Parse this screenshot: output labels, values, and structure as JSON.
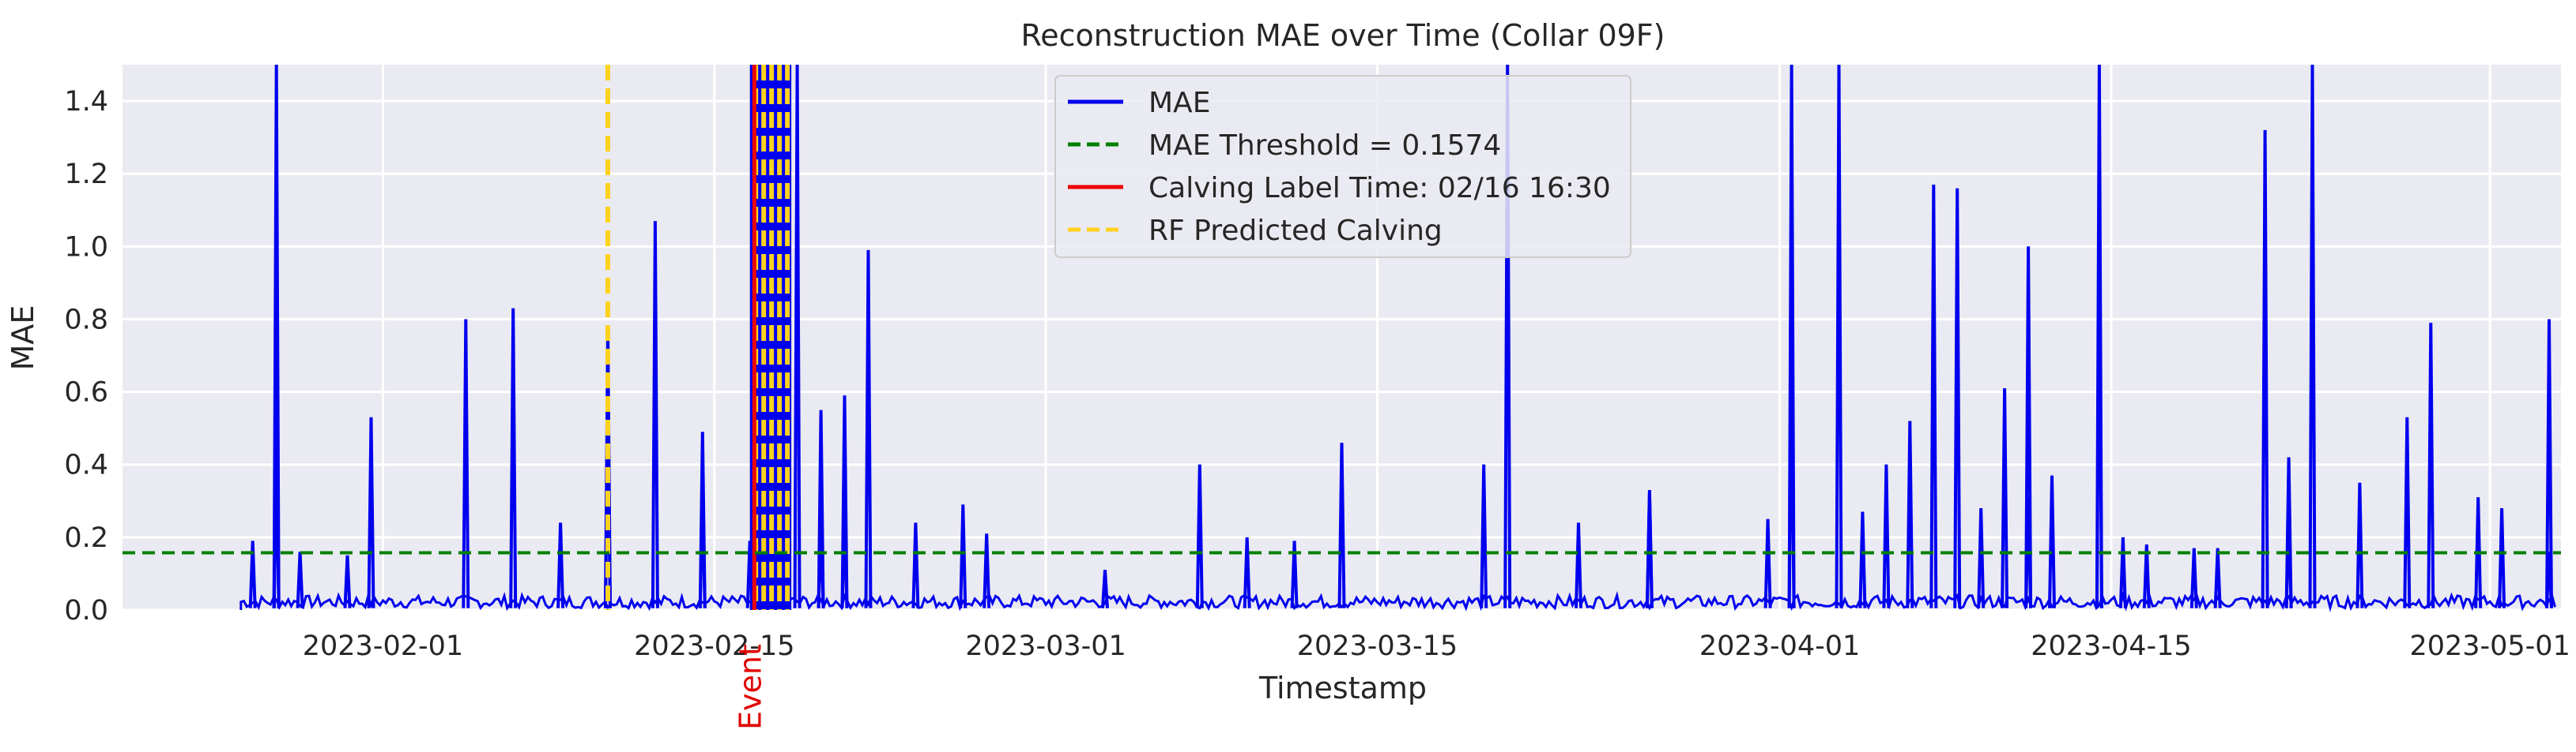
{
  "chart_data": {
    "type": "line",
    "title": "Reconstruction MAE over Time (Collar 09F)",
    "xlabel": "Timestamp",
    "ylabel": "MAE",
    "x_range": [
      "2023-01-21",
      "2023-05-04"
    ],
    "ylim": [
      0,
      1.5
    ],
    "grid": true,
    "legend_position": "top-center",
    "x_ticks": [
      "2023-02-01",
      "2023-02-15",
      "2023-03-01",
      "2023-03-15",
      "2023-04-01",
      "2023-04-15",
      "2023-05-01"
    ],
    "y_ticks": [
      "0.0",
      "0.2",
      "0.4",
      "0.6",
      "0.8",
      "1.0",
      "1.2",
      "1.4"
    ],
    "series": [
      {
        "name": "MAE",
        "color": "#0000ee",
        "style": "solid",
        "spikes": [
          [
            "2023-01-26",
            0.19
          ],
          [
            "2023-01-27",
            0.41
          ],
          [
            "2023-01-27",
            1.5
          ],
          [
            "2023-01-27",
            0.55
          ],
          [
            "2023-01-27",
            0.76
          ],
          [
            "2023-01-28",
            0.16
          ],
          [
            "2023-01-30",
            0.15
          ],
          [
            "2023-01-31",
            0.53
          ],
          [
            "2023-02-04",
            0.8
          ],
          [
            "2023-02-06",
            0.83
          ],
          [
            "2023-02-08",
            0.24
          ],
          [
            "2023-02-10",
            0.53
          ],
          [
            "2023-02-10",
            0.78
          ],
          [
            "2023-02-12",
            1.07
          ],
          [
            "2023-02-14",
            0.49
          ],
          [
            "2023-02-14",
            0.32
          ],
          [
            "2023-02-16",
            0.19
          ],
          [
            "2023-02-17",
            1.5
          ],
          [
            "2023-02-18",
            1.5
          ],
          [
            "2023-02-19",
            0.24
          ],
          [
            "2023-02-19",
            0.55
          ],
          [
            "2023-02-20",
            0.59
          ],
          [
            "2023-02-20",
            0.25
          ],
          [
            "2023-02-21",
            0.99
          ],
          [
            "2023-02-23",
            0.24
          ],
          [
            "2023-02-25",
            0.29
          ],
          [
            "2023-02-26",
            0.21
          ],
          [
            "2023-03-03",
            0.11
          ],
          [
            "2023-03-07",
            0.4
          ],
          [
            "2023-03-09",
            0.2
          ],
          [
            "2023-03-11",
            0.19
          ],
          [
            "2023-03-13",
            0.46
          ],
          [
            "2023-03-19",
            0.4
          ],
          [
            "2023-03-20",
            1.5
          ],
          [
            "2023-03-23",
            0.24
          ],
          [
            "2023-03-26",
            0.32
          ],
          [
            "2023-03-26",
            0.33
          ],
          [
            "2023-03-31",
            0.25
          ],
          [
            "2023-04-01",
            1.5
          ],
          [
            "2023-04-01",
            0.64
          ],
          [
            "2023-04-03",
            1.5
          ],
          [
            "2023-04-04",
            0.27
          ],
          [
            "2023-04-05",
            0.4
          ],
          [
            "2023-04-06",
            0.52
          ],
          [
            "2023-04-07",
            1.17
          ],
          [
            "2023-04-08",
            1.16
          ],
          [
            "2023-04-09",
            0.28
          ],
          [
            "2023-04-10",
            0.61
          ],
          [
            "2023-04-11",
            0.31
          ],
          [
            "2023-04-11",
            1.0
          ],
          [
            "2023-04-12",
            0.37
          ],
          [
            "2023-04-14",
            1.5
          ],
          [
            "2023-04-14",
            1.0
          ],
          [
            "2023-04-15",
            0.2
          ],
          [
            "2023-04-16",
            0.18
          ],
          [
            "2023-04-18",
            0.17
          ],
          [
            "2023-04-19",
            0.17
          ],
          [
            "2023-04-21",
            1.32
          ],
          [
            "2023-04-22",
            0.42
          ],
          [
            "2023-04-22",
            0.26
          ],
          [
            "2023-04-23",
            1.5
          ],
          [
            "2023-04-25",
            0.35
          ],
          [
            "2023-04-27",
            0.53
          ],
          [
            "2023-04-28",
            0.79
          ],
          [
            "2023-04-30",
            0.31
          ],
          [
            "2023-05-01",
            0.28
          ],
          [
            "2023-05-03",
            0.8
          ],
          [
            "2023-05-03",
            0.16
          ]
        ]
      },
      {
        "name": "MAE Threshold = 0.1574",
        "color": "#008000",
        "style": "dashed",
        "value": 0.1574
      },
      {
        "name": "Calving Label Time: 02/16 16:30",
        "color": "#ee0000",
        "style": "solid",
        "x": "2023-02-16 16:30"
      },
      {
        "name": "RF Predicted Calving",
        "color": "#ffd21f",
        "style": "dashed",
        "x": [
          "2023-02-10 12:00",
          "2023-02-16 18:00",
          "2023-02-17 02:00",
          "2023-02-17 10:00",
          "2023-02-17 18:00",
          "2023-02-18 02:00"
        ]
      }
    ],
    "annotations": [
      {
        "text": "Event",
        "x": "2023-02-16 16:30",
        "color": "#e00000"
      }
    ]
  }
}
